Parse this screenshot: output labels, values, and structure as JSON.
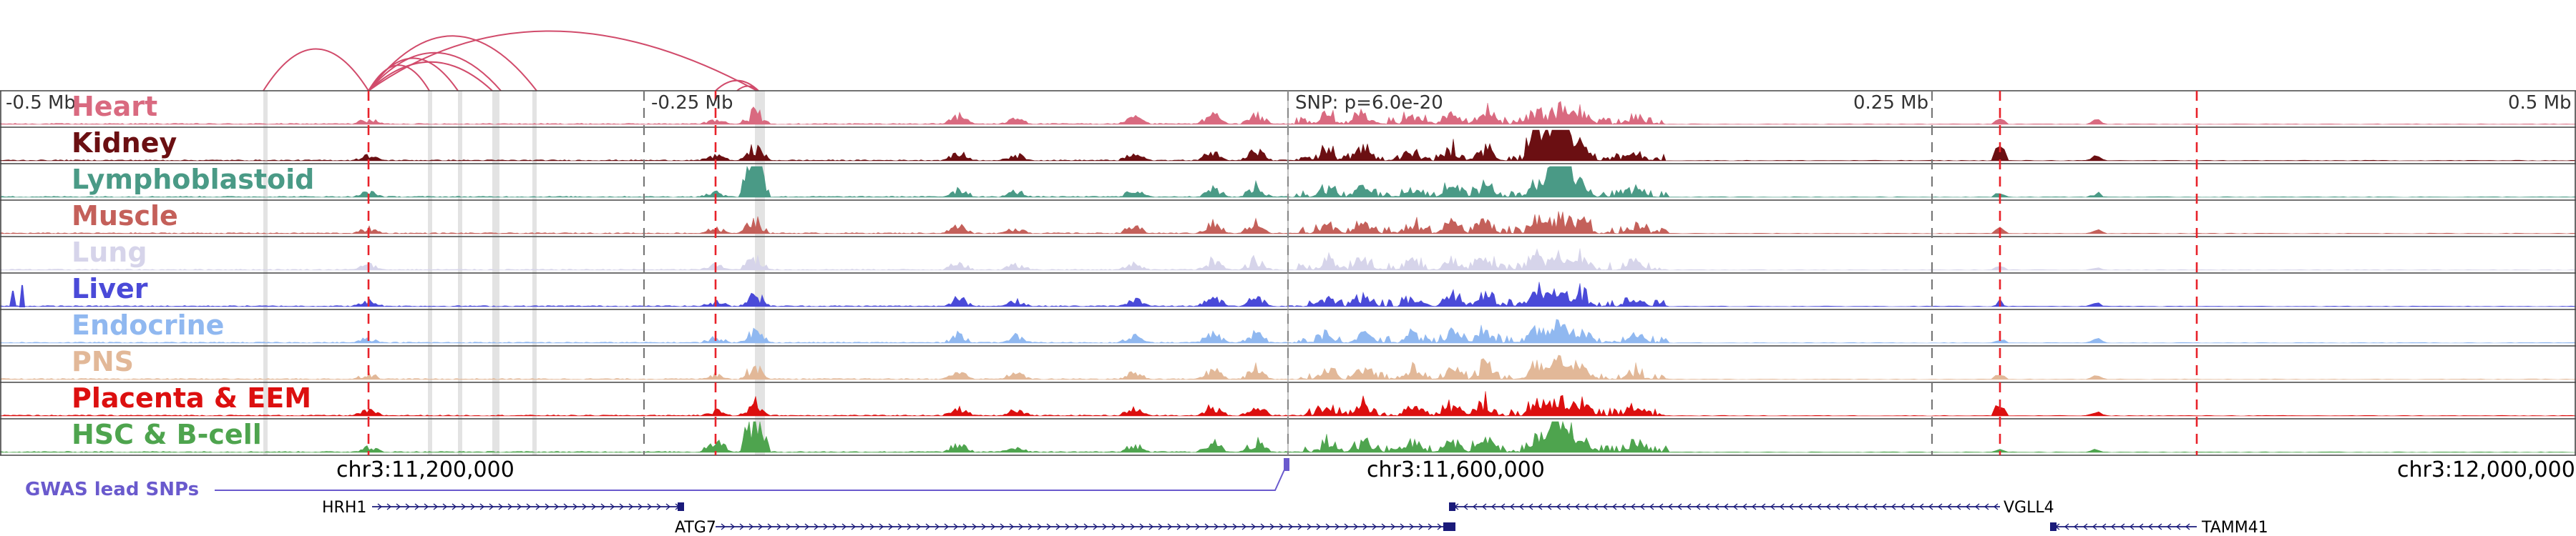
{
  "figure": {
    "axis_markers": [
      {
        "label": "-0.5 Mb",
        "pos": -0.5
      },
      {
        "label": "-0.25 Mb",
        "pos": -0.25
      },
      {
        "label": "SNP: p=6.0e-20",
        "pos": 0
      },
      {
        "label": "0.25 Mb",
        "pos": 0.25
      },
      {
        "label": "0.5 Mb",
        "pos": 0.5
      }
    ],
    "tracks": [
      {
        "name": "Heart",
        "color": "#d96a80"
      },
      {
        "name": "Kidney",
        "color": "#6b0f12"
      },
      {
        "name": "Lymphoblastoid",
        "color": "#4a9a86"
      },
      {
        "name": "Muscle",
        "color": "#c4605a"
      },
      {
        "name": "Lung",
        "color": "#d6d4ea"
      },
      {
        "name": "Liver",
        "color": "#4a4ad8"
      },
      {
        "name": "Endocrine",
        "color": "#90b8f0"
      },
      {
        "name": "PNS",
        "color": "#e2b898"
      },
      {
        "name": "Placenta & EEM",
        "color": "#dc0f0f"
      },
      {
        "name": "HSC & B-cell",
        "color": "#4ea44e"
      }
    ],
    "coordinates": [
      {
        "label": "chr3:11,200,000"
      },
      {
        "label": "chr3:11,600,000"
      },
      {
        "label": "chr3:12,000,000"
      }
    ],
    "gwas": {
      "label": "GWAS lead SNPs",
      "color": "#6a5acd"
    },
    "genes": [
      {
        "name": "HRH1",
        "strand": "+"
      },
      {
        "name": "ATG7",
        "strand": "+"
      },
      {
        "name": "VGLL4",
        "strand": "-"
      },
      {
        "name": "TAMM41",
        "strand": "-"
      }
    ],
    "colors": {
      "arc": "#d14b6b",
      "highlight_line": "#e8222a",
      "gene": "#1a1a7a"
    }
  }
}
